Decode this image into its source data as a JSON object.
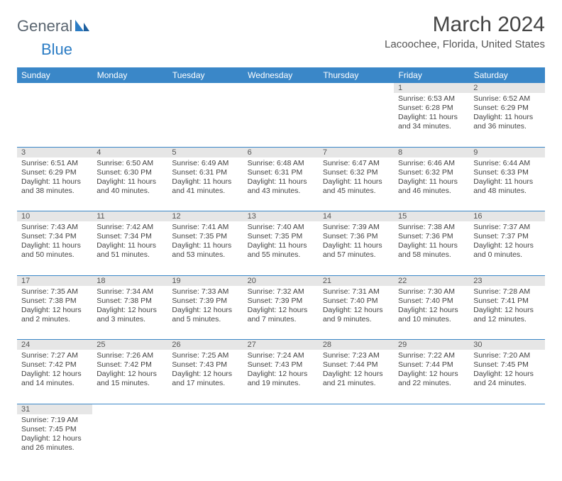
{
  "logo": {
    "text1": "General",
    "text2": "Blue"
  },
  "title": "March 2024",
  "location": "Lacoochee, Florida, United States",
  "colors": {
    "header_bg": "#3a87c8",
    "header_fg": "#ffffff",
    "daynum_bg": "#e6e6e6",
    "rule": "#3a87c8",
    "logo_gray": "#5a6570",
    "logo_blue": "#2b7cc4",
    "text": "#444444"
  },
  "weekdays": [
    "Sunday",
    "Monday",
    "Tuesday",
    "Wednesday",
    "Thursday",
    "Friday",
    "Saturday"
  ],
  "weeks": [
    [
      null,
      null,
      null,
      null,
      null,
      {
        "n": "1",
        "sr": "6:53 AM",
        "ss": "6:28 PM",
        "dl": "11 hours and 34 minutes."
      },
      {
        "n": "2",
        "sr": "6:52 AM",
        "ss": "6:29 PM",
        "dl": "11 hours and 36 minutes."
      }
    ],
    [
      {
        "n": "3",
        "sr": "6:51 AM",
        "ss": "6:29 PM",
        "dl": "11 hours and 38 minutes."
      },
      {
        "n": "4",
        "sr": "6:50 AM",
        "ss": "6:30 PM",
        "dl": "11 hours and 40 minutes."
      },
      {
        "n": "5",
        "sr": "6:49 AM",
        "ss": "6:31 PM",
        "dl": "11 hours and 41 minutes."
      },
      {
        "n": "6",
        "sr": "6:48 AM",
        "ss": "6:31 PM",
        "dl": "11 hours and 43 minutes."
      },
      {
        "n": "7",
        "sr": "6:47 AM",
        "ss": "6:32 PM",
        "dl": "11 hours and 45 minutes."
      },
      {
        "n": "8",
        "sr": "6:46 AM",
        "ss": "6:32 PM",
        "dl": "11 hours and 46 minutes."
      },
      {
        "n": "9",
        "sr": "6:44 AM",
        "ss": "6:33 PM",
        "dl": "11 hours and 48 minutes."
      }
    ],
    [
      {
        "n": "10",
        "sr": "7:43 AM",
        "ss": "7:34 PM",
        "dl": "11 hours and 50 minutes."
      },
      {
        "n": "11",
        "sr": "7:42 AM",
        "ss": "7:34 PM",
        "dl": "11 hours and 51 minutes."
      },
      {
        "n": "12",
        "sr": "7:41 AM",
        "ss": "7:35 PM",
        "dl": "11 hours and 53 minutes."
      },
      {
        "n": "13",
        "sr": "7:40 AM",
        "ss": "7:35 PM",
        "dl": "11 hours and 55 minutes."
      },
      {
        "n": "14",
        "sr": "7:39 AM",
        "ss": "7:36 PM",
        "dl": "11 hours and 57 minutes."
      },
      {
        "n": "15",
        "sr": "7:38 AM",
        "ss": "7:36 PM",
        "dl": "11 hours and 58 minutes."
      },
      {
        "n": "16",
        "sr": "7:37 AM",
        "ss": "7:37 PM",
        "dl": "12 hours and 0 minutes."
      }
    ],
    [
      {
        "n": "17",
        "sr": "7:35 AM",
        "ss": "7:38 PM",
        "dl": "12 hours and 2 minutes."
      },
      {
        "n": "18",
        "sr": "7:34 AM",
        "ss": "7:38 PM",
        "dl": "12 hours and 3 minutes."
      },
      {
        "n": "19",
        "sr": "7:33 AM",
        "ss": "7:39 PM",
        "dl": "12 hours and 5 minutes."
      },
      {
        "n": "20",
        "sr": "7:32 AM",
        "ss": "7:39 PM",
        "dl": "12 hours and 7 minutes."
      },
      {
        "n": "21",
        "sr": "7:31 AM",
        "ss": "7:40 PM",
        "dl": "12 hours and 9 minutes."
      },
      {
        "n": "22",
        "sr": "7:30 AM",
        "ss": "7:40 PM",
        "dl": "12 hours and 10 minutes."
      },
      {
        "n": "23",
        "sr": "7:28 AM",
        "ss": "7:41 PM",
        "dl": "12 hours and 12 minutes."
      }
    ],
    [
      {
        "n": "24",
        "sr": "7:27 AM",
        "ss": "7:42 PM",
        "dl": "12 hours and 14 minutes."
      },
      {
        "n": "25",
        "sr": "7:26 AM",
        "ss": "7:42 PM",
        "dl": "12 hours and 15 minutes."
      },
      {
        "n": "26",
        "sr": "7:25 AM",
        "ss": "7:43 PM",
        "dl": "12 hours and 17 minutes."
      },
      {
        "n": "27",
        "sr": "7:24 AM",
        "ss": "7:43 PM",
        "dl": "12 hours and 19 minutes."
      },
      {
        "n": "28",
        "sr": "7:23 AM",
        "ss": "7:44 PM",
        "dl": "12 hours and 21 minutes."
      },
      {
        "n": "29",
        "sr": "7:22 AM",
        "ss": "7:44 PM",
        "dl": "12 hours and 22 minutes."
      },
      {
        "n": "30",
        "sr": "7:20 AM",
        "ss": "7:45 PM",
        "dl": "12 hours and 24 minutes."
      }
    ],
    [
      {
        "n": "31",
        "sr": "7:19 AM",
        "ss": "7:45 PM",
        "dl": "12 hours and 26 minutes."
      },
      null,
      null,
      null,
      null,
      null,
      null
    ]
  ],
  "labels": {
    "sunrise": "Sunrise:",
    "sunset": "Sunset:",
    "daylight": "Daylight:"
  }
}
